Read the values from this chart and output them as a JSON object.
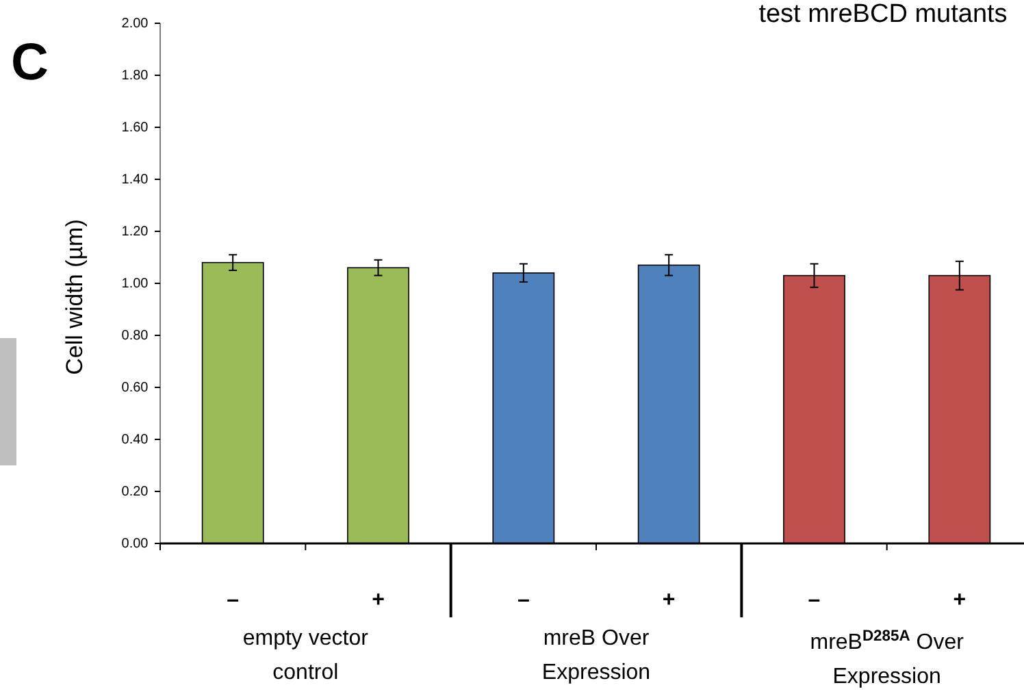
{
  "chart_data": {
    "type": "bar",
    "title": "test mreBCD mutants",
    "ylabel": "Cell width (µm)",
    "categories": [
      "–",
      "+",
      "–",
      "+",
      "–",
      "+"
    ],
    "values": [
      1.08,
      1.06,
      1.04,
      1.07,
      1.03,
      1.03
    ],
    "errors": [
      0.03,
      0.03,
      0.035,
      0.04,
      0.045,
      0.055
    ],
    "colors": [
      "#9bbb59",
      "#9bbb59",
      "#4f81bd",
      "#4f81bd",
      "#c0504d",
      "#c0504d"
    ],
    "ylim": [
      0,
      2
    ],
    "yticks": [
      {
        "value": 0,
        "label": "0.00"
      },
      {
        "value": 0.2,
        "label": "0.20"
      },
      {
        "value": 0.4,
        "label": "0.40"
      },
      {
        "value": 0.6,
        "label": "0.60"
      },
      {
        "value": 0.8,
        "label": "0.80"
      },
      {
        "value": 1,
        "label": "1.00"
      },
      {
        "value": 1.2,
        "label": "1.20"
      },
      {
        "value": 1.4,
        "label": "1.40"
      },
      {
        "value": 1.6,
        "label": "1.60"
      },
      {
        "value": 1.8,
        "label": "1.80"
      },
      {
        "value": 2,
        "label": "2.00"
      }
    ],
    "annotations": [
      "C",
      "empty vector control",
      "mreB Over Expression",
      "mreB$^{D285A}$ Over Expression"
    ],
    "grid": false
  }
}
